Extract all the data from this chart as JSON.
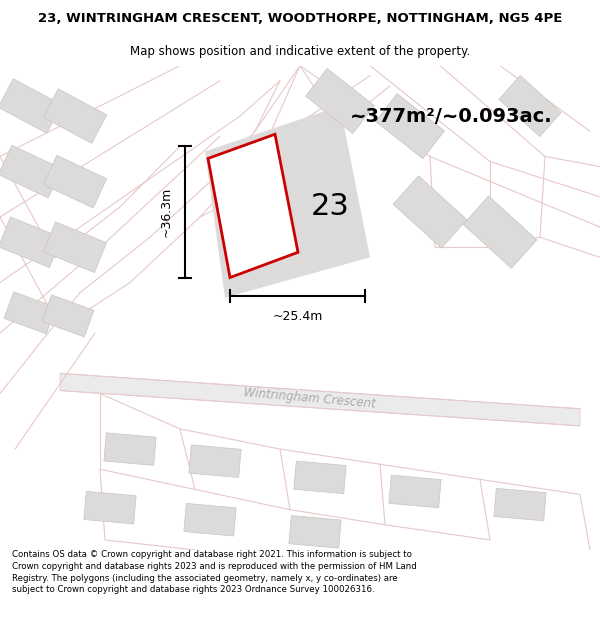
{
  "title_line1": "23, WINTRINGHAM CRESCENT, WOODTHORPE, NOTTINGHAM, NG5 4PE",
  "title_line2": "Map shows position and indicative extent of the property.",
  "area_text": "~377m²/~0.093ac.",
  "number_label": "23",
  "width_label": "~25.4m",
  "height_label": "~36.3m",
  "footer_text": "Contains OS data © Crown copyright and database right 2021. This information is subject to Crown copyright and database rights 2023 and is reproduced with the permission of HM Land Registry. The polygons (including the associated geometry, namely x, y co-ordinates) are subject to Crown copyright and database rights 2023 Ordnance Survey 100026316.",
  "map_bg": "#f2f0f0",
  "road_color": "#e8c8c8",
  "road_color2": "#d4b8b8",
  "plot_outline_color": "#cc0000",
  "plot_fill_color": "#ffffff",
  "building_color": "#dddada",
  "building_edge": "#c8c4c4",
  "street_label": "Wintringham Crescent",
  "title_fontsize": 9.5,
  "subtitle_fontsize": 8.5,
  "footer_fontsize": 6.2
}
